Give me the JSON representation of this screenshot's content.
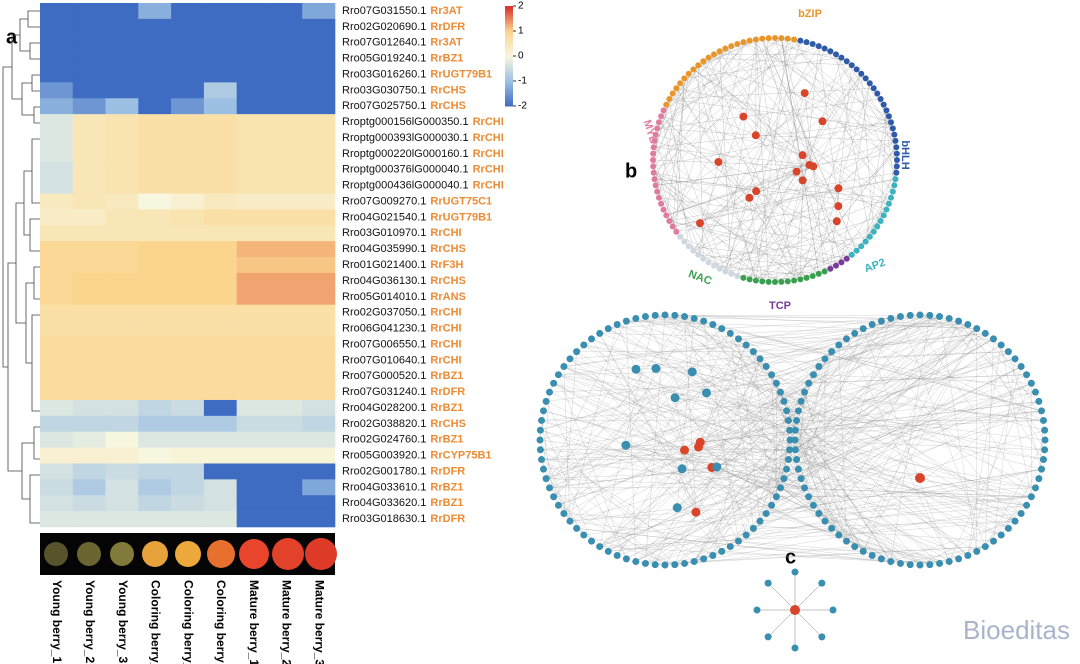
{
  "chart_data": {
    "type": "heatmap",
    "genes": [
      "Rro07G031550.1",
      "Rro02G020690.1",
      "Rro07G012640.1",
      "Rro05G019240.1",
      "Rro03G016260.1",
      "Rro03G030750.1",
      "Rro07G025750.1",
      "Rroptg000156lG000350.1",
      "Rroptg000393lG000030.1",
      "Rroptg000220lG000160.1",
      "Rroptg000376lG000040.1",
      "Rroptg000436lG000040.1",
      "Rro07G009270.1",
      "Rro04G021540.1",
      "Rro03G010970.1",
      "Rro04G035990.1",
      "Rro01G021400.1",
      "Rro04G036130.1",
      "Rro05G014010.1",
      "Rro02G037050.1",
      "Rro06G041230.1",
      "Rro07G006550.1",
      "Rro07G010640.1",
      "Rro07G000520.1",
      "Rro07G031240.1",
      "Rro04G028200.1",
      "Rro02G038820.1",
      "Rro02G024760.1",
      "Rro05G003920.1",
      "Rro02G001780.1",
      "Rro04G033610.1",
      "Rro04G033620.1",
      "Rro03G018630.1"
    ],
    "gene_names": [
      "Rr3AT",
      "RrDFR",
      "Rr3AT",
      "RrBZ1",
      "RrUGT79B1",
      "RrCHS",
      "RrCHS",
      "RrCHI",
      "RrCHI",
      "RrCHI",
      "RrCHI",
      "RrCHI",
      "RrUGT75C1",
      "RrUGT79B1",
      "RrCHI",
      "RrCHS",
      "RrF3H",
      "RrCHS",
      "RrANS",
      "RrCHI",
      "RrCHI",
      "RrCHI",
      "RrCHI",
      "RrBZ1",
      "RrDFR",
      "RrBZ1",
      "RrCHS",
      "RrBZ1",
      "RrCYP75B1",
      "RrDFR",
      "RrBZ1",
      "RrBZ1",
      "RrDFR"
    ],
    "columns": [
      "Young berry_1",
      "Young berry_2",
      "Young berry_3",
      "Coloring berry_1",
      "Coloring berry_2",
      "Coloring berry 3",
      "Mature berry_1",
      "Mature berry_2",
      "Mature berry_3"
    ],
    "values": [
      [
        -2,
        -2,
        -2,
        -1.2,
        -2,
        -2,
        -2,
        -2,
        -1.3
      ],
      [
        -2,
        -2,
        -2,
        -2,
        -2,
        -2,
        -2,
        -2,
        -2
      ],
      [
        -2,
        -2,
        -2,
        -2,
        -2,
        -2,
        -2,
        -2,
        -2
      ],
      [
        -2,
        -2,
        -2,
        -2,
        -2,
        -2,
        -2,
        -2,
        -2
      ],
      [
        -2,
        -2,
        -2,
        -2,
        -2,
        -2,
        -2,
        -2,
        -2
      ],
      [
        -1.5,
        -2,
        -2,
        -2,
        -2,
        -0.8,
        -2,
        -2,
        -2
      ],
      [
        -1.2,
        -1.5,
        -1,
        -2,
        -1.5,
        -1,
        -2,
        -2,
        -2
      ],
      [
        -0.3,
        0.5,
        0.6,
        0.7,
        0.7,
        0.7,
        0.6,
        0.6,
        0.6
      ],
      [
        -0.3,
        0.5,
        0.6,
        0.7,
        0.7,
        0.7,
        0.6,
        0.6,
        0.6
      ],
      [
        -0.3,
        0.5,
        0.6,
        0.7,
        0.7,
        0.7,
        0.6,
        0.6,
        0.6
      ],
      [
        -0.4,
        0.5,
        0.6,
        0.7,
        0.7,
        0.7,
        0.6,
        0.6,
        0.6
      ],
      [
        -0.4,
        0.5,
        0.6,
        0.7,
        0.7,
        0.7,
        0.6,
        0.6,
        0.6
      ],
      [
        0.4,
        0.5,
        0.4,
        0,
        0.2,
        0.4,
        0.3,
        0.3,
        0.3
      ],
      [
        0.3,
        0.3,
        0.5,
        0.5,
        0.6,
        0.7,
        0.7,
        0.7,
        0.7
      ],
      [
        0.5,
        0.5,
        0.5,
        0.5,
        0.5,
        0.5,
        0.5,
        0.5,
        0.5
      ],
      [
        0.9,
        0.9,
        0.9,
        1,
        1,
        1,
        1.2,
        1.2,
        1.2
      ],
      [
        0.9,
        0.9,
        0.9,
        1,
        1,
        1,
        1.1,
        1.1,
        1.1
      ],
      [
        0.9,
        1,
        1,
        1,
        1,
        1,
        1.3,
        1.3,
        1.3
      ],
      [
        0.9,
        1,
        1,
        1,
        1,
        1,
        1.3,
        1.3,
        1.3
      ],
      [
        0.7,
        0.7,
        0.7,
        0.7,
        0.7,
        0.7,
        0.7,
        0.7,
        0.7
      ],
      [
        0.7,
        0.7,
        0.7,
        0.7,
        0.7,
        0.7,
        0.7,
        0.7,
        0.7
      ],
      [
        0.8,
        0.8,
        0.8,
        0.8,
        0.8,
        0.8,
        0.8,
        0.8,
        0.8
      ],
      [
        0.8,
        0.8,
        0.8,
        0.8,
        0.8,
        0.8,
        0.8,
        0.8,
        0.8
      ],
      [
        0.8,
        0.8,
        0.8,
        0.8,
        0.8,
        0.8,
        0.8,
        0.8,
        0.8
      ],
      [
        0.8,
        0.8,
        0.8,
        0.8,
        0.8,
        0.8,
        0.8,
        0.8,
        0.8
      ],
      [
        -0.3,
        -0.4,
        -0.4,
        -0.6,
        -0.5,
        -2,
        -0.3,
        -0.3,
        -0.4
      ],
      [
        -0.6,
        -0.6,
        -0.6,
        -0.8,
        -0.8,
        -0.8,
        -0.5,
        -0.5,
        -0.6
      ],
      [
        -0.3,
        -0.2,
        0,
        -0.3,
        -0.3,
        -0.3,
        -0.3,
        -0.3,
        -0.3
      ],
      [
        0.2,
        0.2,
        0.2,
        0,
        0.1,
        0.1,
        0.1,
        0.1,
        0.1
      ],
      [
        -0.4,
        -0.6,
        -0.5,
        -0.6,
        -0.6,
        -2,
        -2,
        -2,
        -2
      ],
      [
        -0.5,
        -0.8,
        -0.4,
        -0.8,
        -0.6,
        -0.4,
        -2,
        -2,
        -1.3
      ],
      [
        -0.4,
        -0.5,
        -0.4,
        -0.6,
        -0.5,
        -0.4,
        -2,
        -2,
        -2
      ],
      [
        -0.3,
        -0.3,
        -0.3,
        -0.3,
        -0.3,
        -0.3,
        -2,
        -2,
        -2
      ]
    ],
    "clim": [
      -2,
      2
    ],
    "cticks": [
      2,
      1,
      0,
      -1,
      -2
    ],
    "colors": [
      "#3d6cc2",
      "#9cc0e4",
      "#f7f7e0",
      "#fbd58e",
      "#d7302a"
    ],
    "name_color": "#ec8b35"
  },
  "panels": {
    "a": "a",
    "b": "b",
    "c": "c"
  },
  "network_b": {
    "groups": [
      {
        "name": "bZIP",
        "color": "#e8962a"
      },
      {
        "name": "MYB",
        "color": "#e07ba0"
      },
      {
        "name": "bHLH",
        "color": "#2f5aa8"
      },
      {
        "name": "NAC",
        "color": "#3aa050"
      },
      {
        "name": "AP2",
        "color": "#3bb3c0"
      },
      {
        "name": "TCP",
        "color": "#7a3a9a"
      }
    ]
  },
  "watermark": "Bioeditas"
}
